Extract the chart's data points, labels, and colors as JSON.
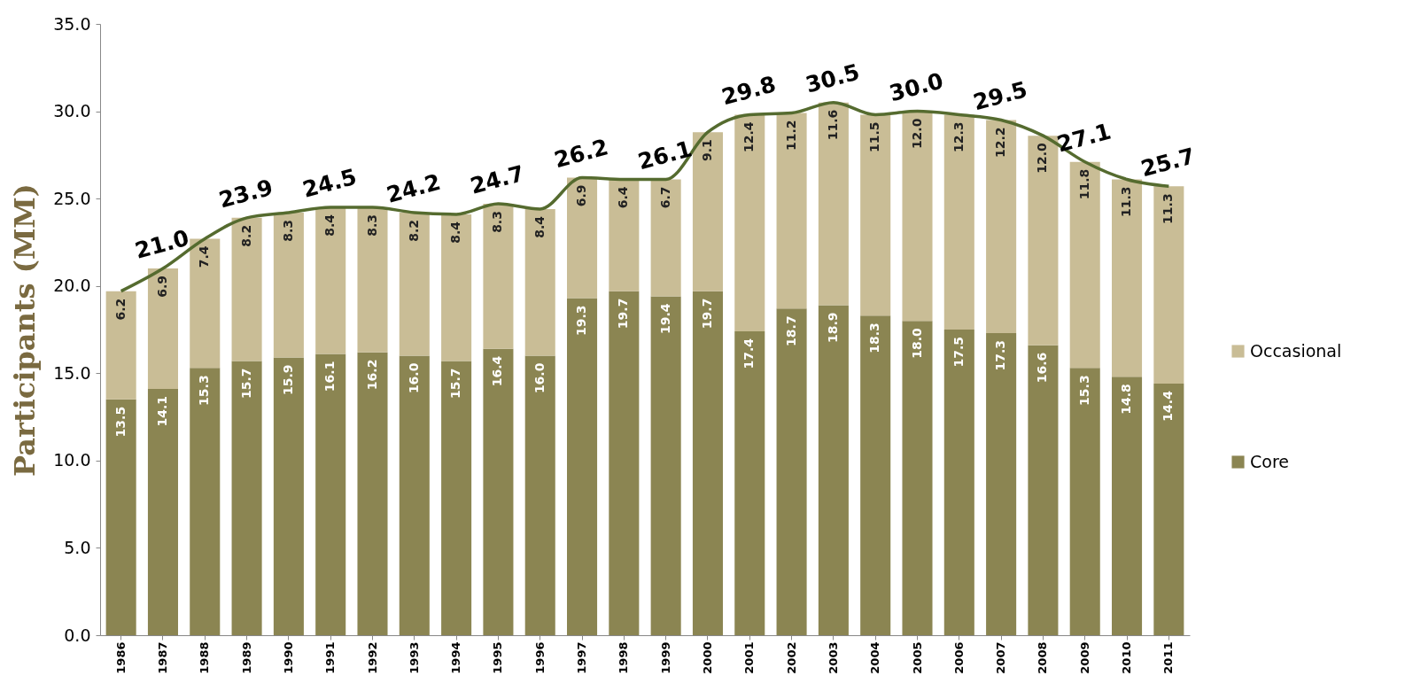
{
  "chart_data": {
    "type": "bar",
    "stacked": true,
    "categories": [
      "1986",
      "1987",
      "1988",
      "1989",
      "1990",
      "1991",
      "1992",
      "1993",
      "1994",
      "1995",
      "1996",
      "1997",
      "1998",
      "1999",
      "2000",
      "2001",
      "2002",
      "2003",
      "2004",
      "2005",
      "2006",
      "2007",
      "2008",
      "2009",
      "2010",
      "2011"
    ],
    "ylabel": "Participants (MM)",
    "ylim": [
      0,
      35
    ],
    "yticks": [
      {
        "value": 0,
        "label": "0.0"
      },
      {
        "value": 5,
        "label": "5.0"
      },
      {
        "value": 10,
        "label": "10.0"
      },
      {
        "value": 15,
        "label": "15.0"
      },
      {
        "value": 20,
        "label": "20.0"
      },
      {
        "value": 25,
        "label": "25.0"
      },
      {
        "value": 30,
        "label": "30.0"
      },
      {
        "value": 35,
        "label": "35.0"
      }
    ],
    "legend": "right",
    "series": [
      {
        "name": "Core",
        "color": "#8b8552",
        "values": [
          13.5,
          14.1,
          15.3,
          15.7,
          15.9,
          16.1,
          16.2,
          16.0,
          15.7,
          16.4,
          16.0,
          19.3,
          19.7,
          19.4,
          19.7,
          17.4,
          18.7,
          18.9,
          18.3,
          18.0,
          17.5,
          17.3,
          16.6,
          15.3,
          14.8,
          14.4
        ],
        "value_labels": [
          "13.5",
          "14.1",
          "15.3",
          "15.7",
          "15.9",
          "16.1",
          "16.2",
          "16.0",
          "15.7",
          "16.4",
          "16.0",
          "19.3",
          "19.7",
          "19.4",
          "19.7",
          "17.4",
          "18.7",
          "18.9",
          "18.3",
          "18.0",
          "17.5",
          "17.3",
          "16.6",
          "15.3",
          "14.8",
          "14.4"
        ]
      },
      {
        "name": "Occasional",
        "color": "#c9bd96",
        "values": [
          6.2,
          6.9,
          7.4,
          8.2,
          8.3,
          8.4,
          8.3,
          8.2,
          8.4,
          8.3,
          8.4,
          6.9,
          6.4,
          6.7,
          9.1,
          12.4,
          11.2,
          11.6,
          11.5,
          12.0,
          12.3,
          12.2,
          12.0,
          11.8,
          11.3,
          11.3
        ],
        "value_labels": [
          "6.2",
          "6.9",
          "7.4",
          "8.2",
          "8.3",
          "8.4",
          "8.3",
          "8.2",
          "8.4",
          "8.3",
          "8.4",
          "6.9",
          "6.4",
          "6.7",
          "9.1",
          "12.4",
          "11.2",
          "11.6",
          "11.5",
          "12.0",
          "12.3",
          "12.2",
          "12.0",
          "11.8",
          "11.3",
          "11.3"
        ]
      },
      {
        "type": "line",
        "color": "#556b2f",
        "values": [
          19.7,
          21.0,
          22.7,
          23.9,
          24.2,
          24.5,
          24.5,
          24.2,
          24.1,
          24.7,
          24.4,
          26.2,
          26.1,
          26.1,
          28.8,
          29.8,
          29.9,
          30.5,
          29.8,
          30.0,
          29.8,
          29.5,
          28.6,
          27.1,
          26.1,
          25.7
        ],
        "value_labels": [
          null,
          "21.0",
          null,
          "23.9",
          null,
          "24.5",
          null,
          "24.2",
          null,
          "24.7",
          null,
          "26.2",
          null,
          "26.1",
          null,
          "29.8",
          null,
          "30.5",
          null,
          "30.0",
          null,
          "29.5",
          null,
          "27.1",
          null,
          "25.7"
        ]
      }
    ]
  }
}
